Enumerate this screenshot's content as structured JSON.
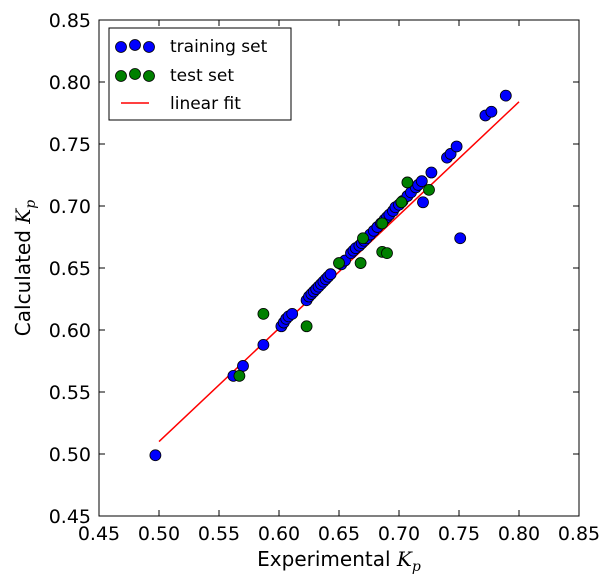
{
  "chart_data": {
    "type": "scatter",
    "xlabel": "Experimental",
    "ylabel": "Calculated",
    "axis_symbol": "K",
    "axis_subscript": "p",
    "xlim": [
      0.45,
      0.85
    ],
    "ylim": [
      0.45,
      0.85
    ],
    "xticks": [
      "0.45",
      "0.50",
      "0.55",
      "0.60",
      "0.65",
      "0.70",
      "0.75",
      "0.80",
      "0.85"
    ],
    "yticks": [
      "0.45",
      "0.50",
      "0.55",
      "0.60",
      "0.65",
      "0.70",
      "0.75",
      "0.80",
      "0.85"
    ],
    "legend_position": "top-left",
    "grid": false,
    "colors": {
      "training": "#0000ff",
      "test": "#008000",
      "fit": "#ff0000"
    },
    "series": [
      {
        "name": "training set",
        "kind": "scatter",
        "points": [
          [
            0.497,
            0.499
          ],
          [
            0.562,
            0.563
          ],
          [
            0.57,
            0.571
          ],
          [
            0.587,
            0.588
          ],
          [
            0.602,
            0.603
          ],
          [
            0.604,
            0.606
          ],
          [
            0.606,
            0.609
          ],
          [
            0.608,
            0.611
          ],
          [
            0.611,
            0.613
          ],
          [
            0.623,
            0.624
          ],
          [
            0.625,
            0.627
          ],
          [
            0.627,
            0.629
          ],
          [
            0.629,
            0.631
          ],
          [
            0.631,
            0.633
          ],
          [
            0.633,
            0.635
          ],
          [
            0.635,
            0.637
          ],
          [
            0.637,
            0.639
          ],
          [
            0.639,
            0.641
          ],
          [
            0.641,
            0.643
          ],
          [
            0.643,
            0.645
          ],
          [
            0.652,
            0.653
          ],
          [
            0.655,
            0.656
          ],
          [
            0.66,
            0.662
          ],
          [
            0.662,
            0.664
          ],
          [
            0.664,
            0.666
          ],
          [
            0.667,
            0.668
          ],
          [
            0.669,
            0.67
          ],
          [
            0.671,
            0.672
          ],
          [
            0.673,
            0.674
          ],
          [
            0.676,
            0.677
          ],
          [
            0.679,
            0.68
          ],
          [
            0.682,
            0.683
          ],
          [
            0.685,
            0.686
          ],
          [
            0.688,
            0.689
          ],
          [
            0.69,
            0.691
          ],
          [
            0.692,
            0.693
          ],
          [
            0.695,
            0.696
          ],
          [
            0.697,
            0.699
          ],
          [
            0.7,
            0.701
          ],
          [
            0.703,
            0.704
          ],
          [
            0.707,
            0.708
          ],
          [
            0.71,
            0.711
          ],
          [
            0.714,
            0.715
          ],
          [
            0.716,
            0.717
          ],
          [
            0.719,
            0.72
          ],
          [
            0.72,
            0.703
          ],
          [
            0.727,
            0.727
          ],
          [
            0.74,
            0.739
          ],
          [
            0.743,
            0.742
          ],
          [
            0.748,
            0.748
          ],
          [
            0.751,
            0.674
          ],
          [
            0.772,
            0.773
          ],
          [
            0.777,
            0.776
          ],
          [
            0.789,
            0.789
          ]
        ]
      },
      {
        "name": "test set",
        "kind": "scatter",
        "points": [
          [
            0.567,
            0.563
          ],
          [
            0.587,
            0.613
          ],
          [
            0.623,
            0.603
          ],
          [
            0.65,
            0.654
          ],
          [
            0.668,
            0.654
          ],
          [
            0.67,
            0.674
          ],
          [
            0.686,
            0.686
          ],
          [
            0.686,
            0.663
          ],
          [
            0.69,
            0.662
          ],
          [
            0.702,
            0.703
          ],
          [
            0.707,
            0.719
          ],
          [
            0.725,
            0.713
          ]
        ]
      },
      {
        "name": "linear fit",
        "kind": "line",
        "points": [
          [
            0.5,
            0.51
          ],
          [
            0.8,
            0.784
          ]
        ]
      }
    ]
  }
}
